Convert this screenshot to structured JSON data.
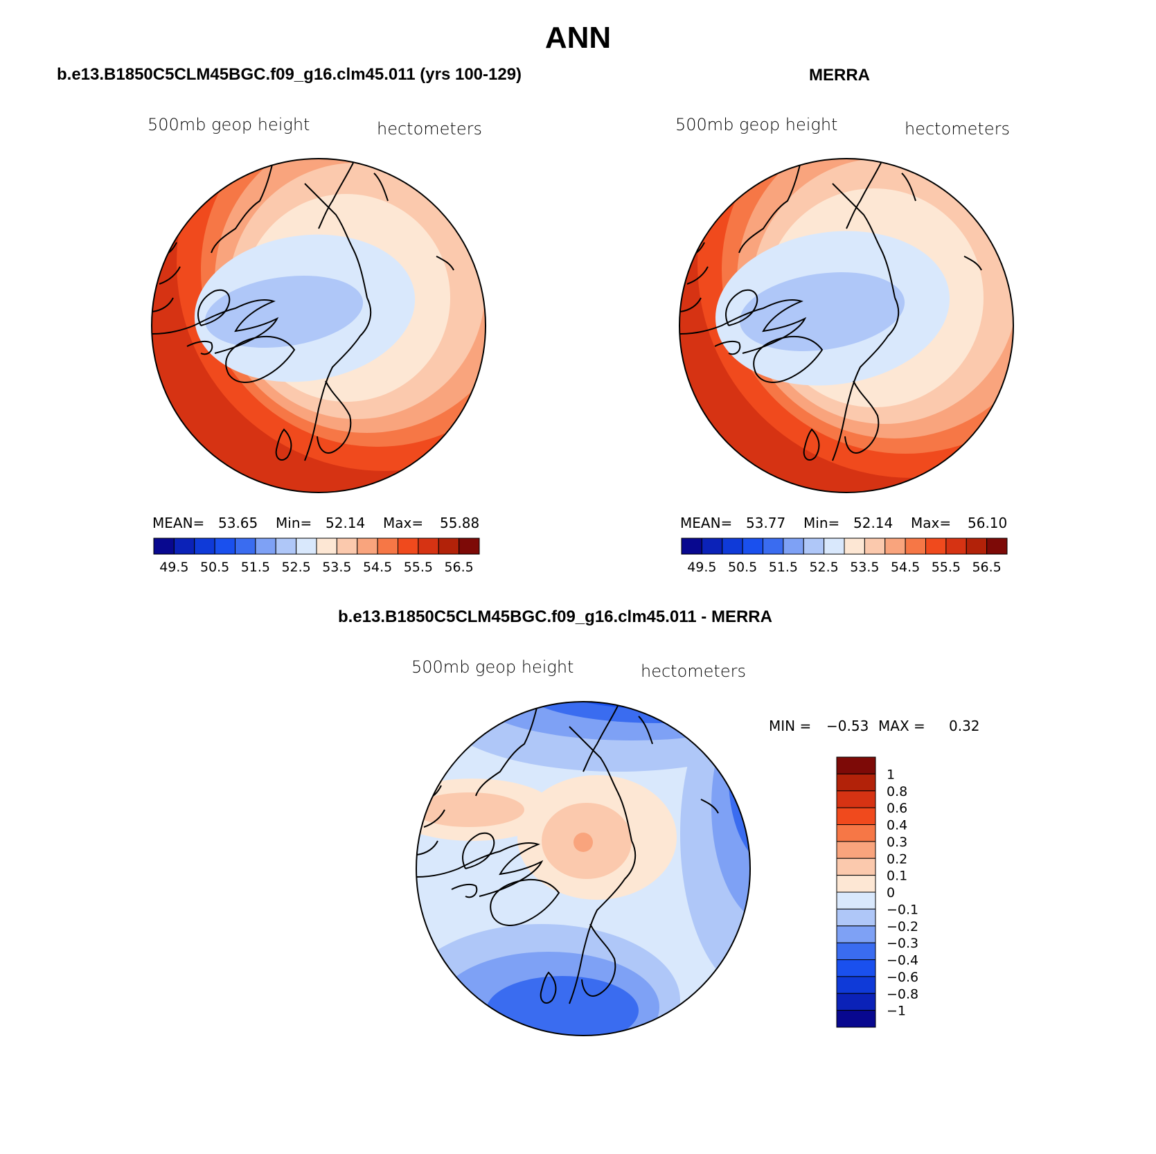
{
  "page": {
    "title": "ANN"
  },
  "colors": {
    "scale_16": [
      "#08088f",
      "#0b22b8",
      "#0f3ad8",
      "#1a50ee",
      "#3a6cf0",
      "#7ea1f5",
      "#afc7f8",
      "#d9e8fc",
      "#fde7d4",
      "#fbc9ad",
      "#f9a47d",
      "#f67746",
      "#f04a1d",
      "#d63313",
      "#b22209",
      "#7d0a07"
    ],
    "diff_scale": [
      "#08088f",
      "#0b22b8",
      "#0f3ad8",
      "#1a50ee",
      "#3a6cf0",
      "#7ea1f5",
      "#afc7f8",
      "#d9e8fc",
      "#fde7d4",
      "#fbc9ad",
      "#f9a47d",
      "#f67746",
      "#f04a1d",
      "#d63313",
      "#b22209",
      "#7d0a07"
    ]
  },
  "panels": [
    {
      "id": "model",
      "heading": "b.e13.B1850C5CLM45BGC.f09_g16.clm45.011 (yrs 100-129)",
      "variable": "500mb geop height",
      "units": "hectometers",
      "stats": {
        "mean_label": "MEAN=",
        "mean": "53.65",
        "min_label": "Min=",
        "min": "52.14",
        "max_label": "Max=",
        "max": "55.88"
      },
      "colorbar_ticks": [
        "49.5",
        "50.5",
        "51.5",
        "52.5",
        "53.5",
        "54.5",
        "55.5",
        "56.5"
      ]
    },
    {
      "id": "obs",
      "heading": "MERRA",
      "variable": "500mb geop height",
      "units": "hectometers",
      "stats": {
        "mean_label": "MEAN=",
        "mean": "53.77",
        "min_label": "Min=",
        "min": "52.14",
        "max_label": "Max=",
        "max": "56.10"
      },
      "colorbar_ticks": [
        "49.5",
        "50.5",
        "51.5",
        "52.5",
        "53.5",
        "54.5",
        "55.5",
        "56.5"
      ]
    },
    {
      "id": "diff",
      "heading": "b.e13.B1850C5CLM45BGC.f09_g16.clm45.011 - MERRA",
      "variable": "500mb geop height",
      "units": "hectometers",
      "stats": {
        "min_label": "MIN =",
        "min": "−0.53",
        "max_label": "MAX =",
        "max": "0.32"
      },
      "colorbar_ticks": [
        "1",
        "0.8",
        "0.6",
        "0.4",
        "0.3",
        "0.2",
        "0.1",
        "0",
        "−0.1",
        "−0.2",
        "−0.3",
        "−0.4",
        "−0.6",
        "−0.8",
        "−1"
      ]
    }
  ]
}
